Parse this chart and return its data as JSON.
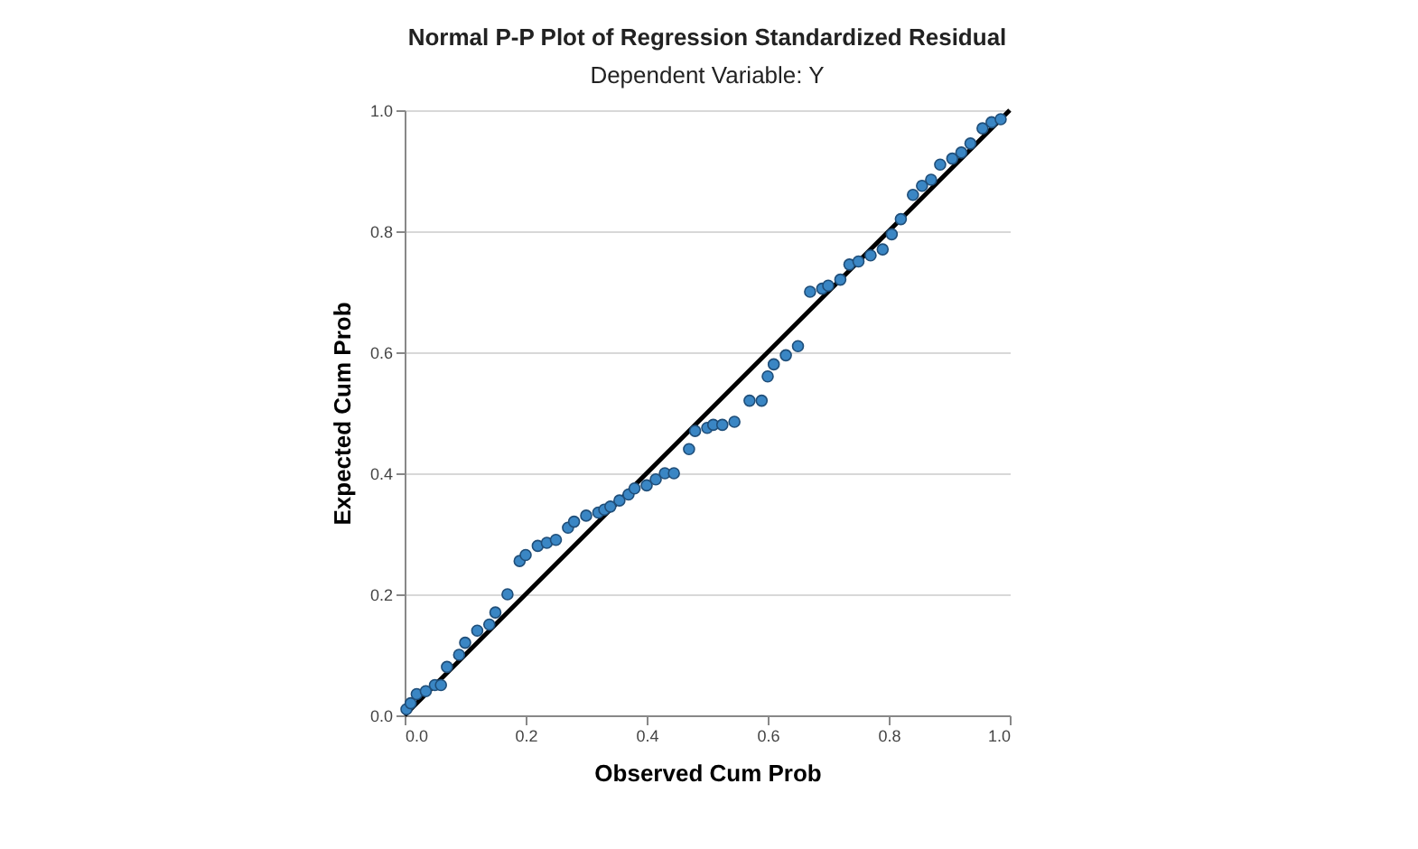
{
  "chart_data": {
    "type": "scatter",
    "title": "Normal P-P Plot of Regression Standardized Residual",
    "subtitle": "Dependent Variable: Y",
    "xlabel": "Observed Cum Prob",
    "ylabel": "Expected Cum Prob",
    "xlim": [
      0,
      1
    ],
    "ylim": [
      0,
      1
    ],
    "xticks": [
      {
        "value": 0,
        "label": "0.0"
      },
      {
        "value": 0.2,
        "label": "0.2"
      },
      {
        "value": 0.4,
        "label": "0.4"
      },
      {
        "value": 0.6,
        "label": "0.6"
      },
      {
        "value": 0.8,
        "label": "0.8"
      },
      {
        "value": 1,
        "label": "1.0"
      }
    ],
    "yticks": [
      {
        "value": 0,
        "label": "0.0"
      },
      {
        "value": 0.2,
        "label": "0.2"
      },
      {
        "value": 0.4,
        "label": "0.4"
      },
      {
        "value": 0.6,
        "label": "0.6"
      },
      {
        "value": 0.8,
        "label": "0.8"
      },
      {
        "value": 1,
        "label": "1.0"
      }
    ],
    "grid": "y",
    "marker": "circle",
    "series": [
      {
        "color": "#3a86c4",
        "x": [
          0.003,
          0.01,
          0.02,
          0.035,
          0.05,
          0.06,
          0.07,
          0.09,
          0.1,
          0.12,
          0.14,
          0.15,
          0.17,
          0.19,
          0.2,
          0.22,
          0.235,
          0.25,
          0.27,
          0.28,
          0.3,
          0.32,
          0.33,
          0.34,
          0.355,
          0.37,
          0.38,
          0.4,
          0.415,
          0.43,
          0.445,
          0.47,
          0.48,
          0.5,
          0.51,
          0.525,
          0.545,
          0.57,
          0.59,
          0.6,
          0.61,
          0.63,
          0.65,
          0.67,
          0.69,
          0.7,
          0.72,
          0.735,
          0.75,
          0.77,
          0.79,
          0.805,
          0.82,
          0.84,
          0.855,
          0.87,
          0.885,
          0.905,
          0.92,
          0.935,
          0.955,
          0.97,
          0.985
        ],
        "values": [
          0.01,
          0.02,
          0.035,
          0.04,
          0.05,
          0.05,
          0.08,
          0.1,
          0.12,
          0.14,
          0.15,
          0.17,
          0.2,
          0.255,
          0.265,
          0.28,
          0.285,
          0.29,
          0.31,
          0.32,
          0.33,
          0.335,
          0.34,
          0.345,
          0.355,
          0.365,
          0.375,
          0.38,
          0.39,
          0.4,
          0.4,
          0.44,
          0.47,
          0.475,
          0.48,
          0.48,
          0.485,
          0.52,
          0.52,
          0.56,
          0.58,
          0.595,
          0.61,
          0.7,
          0.705,
          0.71,
          0.72,
          0.745,
          0.75,
          0.76,
          0.77,
          0.795,
          0.82,
          0.86,
          0.875,
          0.885,
          0.91,
          0.92,
          0.93,
          0.945,
          0.97,
          0.98,
          0.985
        ]
      },
      {
        "type": "line",
        "marker": "none",
        "color": "#000000",
        "x": [
          0,
          1
        ],
        "values": [
          0,
          1
        ]
      }
    ]
  }
}
